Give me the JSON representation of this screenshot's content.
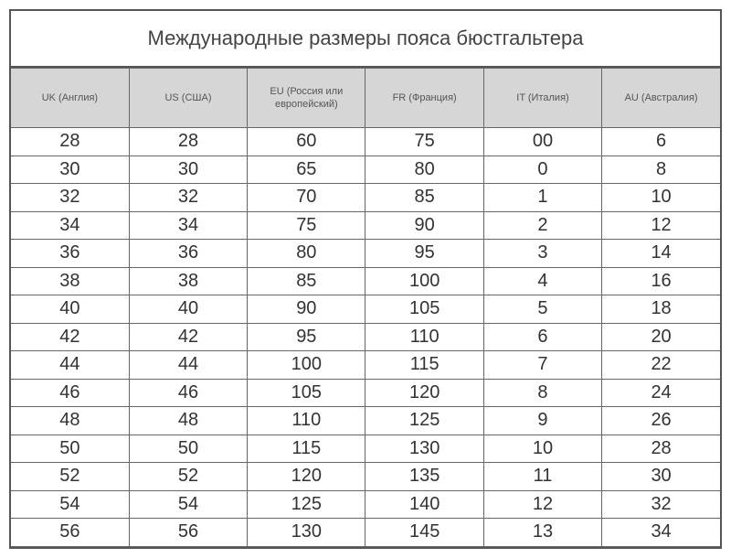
{
  "title": "Международные размеры пояса бюстгальтера",
  "headers": [
    "UK (Англия)",
    "US (США)",
    "EU (Россия или европейский)",
    "FR (Франция)",
    "IT (Италия)",
    "AU (Австралия)"
  ],
  "rows": [
    [
      "28",
      "28",
      "60",
      "75",
      "00",
      "6"
    ],
    [
      "30",
      "30",
      "65",
      "80",
      "0",
      "8"
    ],
    [
      "32",
      "32",
      "70",
      "85",
      "1",
      "10"
    ],
    [
      "34",
      "34",
      "75",
      "90",
      "2",
      "12"
    ],
    [
      "36",
      "36",
      "80",
      "95",
      "3",
      "14"
    ],
    [
      "38",
      "38",
      "85",
      "100",
      "4",
      "16"
    ],
    [
      "40",
      "40",
      "90",
      "105",
      "5",
      "18"
    ],
    [
      "42",
      "42",
      "95",
      "110",
      "6",
      "20"
    ],
    [
      "44",
      "44",
      "100",
      "115",
      "7",
      "22"
    ],
    [
      "46",
      "46",
      "105",
      "120",
      "8",
      "24"
    ],
    [
      "48",
      "48",
      "110",
      "125",
      "9",
      "26"
    ],
    [
      "50",
      "50",
      "115",
      "130",
      "10",
      "28"
    ],
    [
      "52",
      "52",
      "120",
      "135",
      "11",
      "30"
    ],
    [
      "54",
      "54",
      "125",
      "140",
      "12",
      "32"
    ],
    [
      "56",
      "56",
      "130",
      "145",
      "13",
      "34"
    ]
  ]
}
